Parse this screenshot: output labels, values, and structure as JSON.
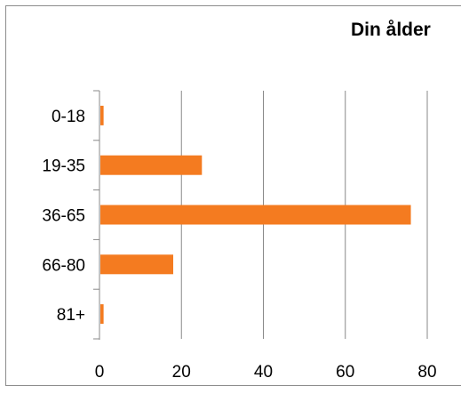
{
  "chart_data": {
    "type": "bar",
    "orientation": "horizontal",
    "title": "Din ålder",
    "categories": [
      "0-18",
      "19-35",
      "36-65",
      "66-80",
      "81+"
    ],
    "values": [
      1,
      25,
      76,
      18,
      1
    ],
    "xlim": [
      0,
      80
    ],
    "xticks": [
      "0",
      "20",
      "40",
      "60",
      "80"
    ],
    "grid": "vertical",
    "legend": "none",
    "bar_color": "#f47b20",
    "grid_color": "#888888"
  }
}
